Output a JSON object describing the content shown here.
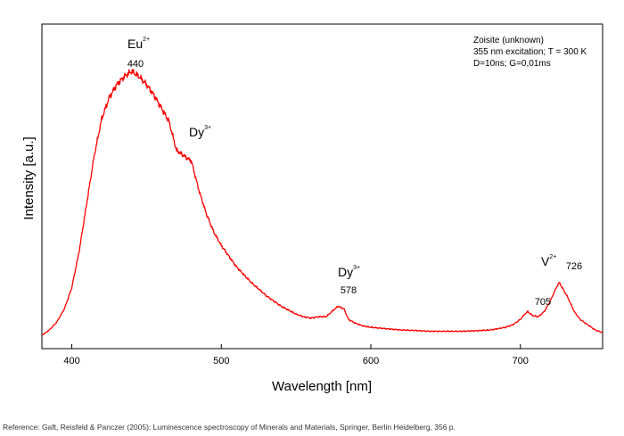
{
  "chart_data": {
    "type": "line",
    "title": "",
    "xlabel": "Wavelength [nm]",
    "ylabel": "Intensity [a.u.]",
    "xlim": [
      380,
      755
    ],
    "ylim": [
      0,
      1
    ],
    "x_ticks": [
      400,
      500,
      600,
      700
    ],
    "y_ticks_labeled": false,
    "grid": false,
    "line_color": "#ff0000",
    "info_box": {
      "placement": "top-right",
      "lines": [
        "Zoisite (unknown)",
        "355 nm excitation; T = 300 K",
        "D=10ns; G=0,01ms"
      ]
    },
    "annotations": [
      {
        "ion": "Eu",
        "charge": "2+",
        "value": "440",
        "x": 440
      },
      {
        "ion": "Dy",
        "charge": "3+",
        "value": "",
        "x": 478
      },
      {
        "ion": "Dy",
        "charge": "3+",
        "value": "578",
        "x": 578
      },
      {
        "ion": "V",
        "charge": "2+",
        "value": "705",
        "x": 705
      },
      {
        "ion": "",
        "charge": "",
        "value": "726",
        "x": 726
      }
    ],
    "series": [
      {
        "x": [
          380,
          385,
          390,
          395,
          400,
          405,
          410,
          415,
          420,
          425,
          430,
          435,
          440,
          445,
          450,
          455,
          460,
          465,
          470,
          475,
          480,
          485,
          490,
          495,
          500,
          505,
          510,
          515,
          520,
          525,
          530,
          535,
          540,
          545,
          550,
          555,
          560,
          565,
          570,
          575,
          578,
          582,
          585,
          590,
          595,
          600,
          610,
          620,
          630,
          640,
          650,
          660,
          670,
          680,
          690,
          695,
          700,
          703,
          705,
          708,
          712,
          716,
          720,
          724,
          726,
          728,
          732,
          736,
          740,
          745,
          750,
          755
        ],
        "y": [
          0.0,
          0.02,
          0.05,
          0.1,
          0.18,
          0.32,
          0.5,
          0.68,
          0.82,
          0.9,
          0.95,
          0.98,
          1.0,
          0.98,
          0.95,
          0.91,
          0.86,
          0.81,
          0.7,
          0.68,
          0.66,
          0.55,
          0.46,
          0.39,
          0.34,
          0.3,
          0.26,
          0.23,
          0.2,
          0.175,
          0.15,
          0.13,
          0.11,
          0.095,
          0.08,
          0.07,
          0.065,
          0.07,
          0.07,
          0.095,
          0.11,
          0.1,
          0.06,
          0.045,
          0.035,
          0.03,
          0.025,
          0.02,
          0.018,
          0.015,
          0.015,
          0.015,
          0.017,
          0.02,
          0.03,
          0.04,
          0.06,
          0.08,
          0.09,
          0.075,
          0.07,
          0.09,
          0.13,
          0.18,
          0.2,
          0.18,
          0.14,
          0.09,
          0.06,
          0.04,
          0.02,
          0.01
        ]
      }
    ]
  },
  "reference": "Reference: Gaft, Reisfeld & Panczer (2005): Luminescence spectroscopy of Minerals and Materials, Springer, Berlin Heidelberg, 356 p."
}
